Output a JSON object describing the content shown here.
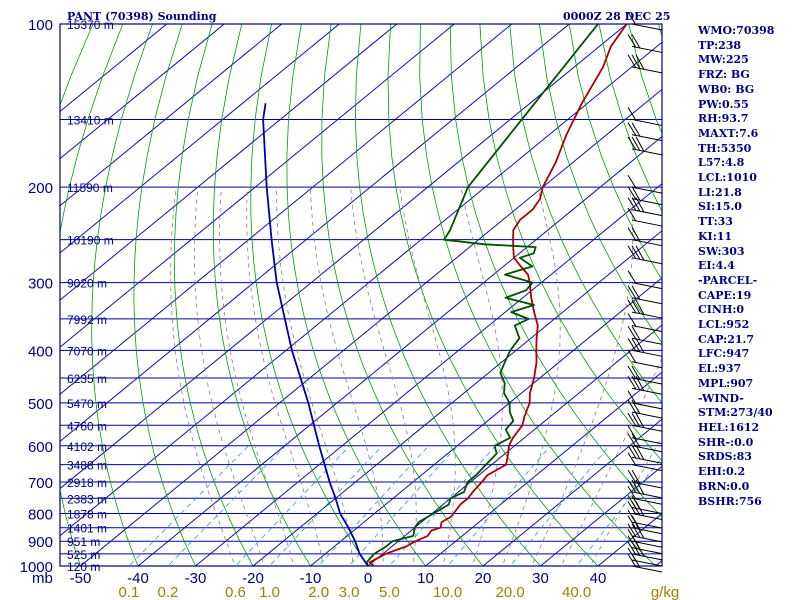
{
  "header": {
    "station_title": "PANT (70398) Sounding",
    "valid_time": "0000Z 28 DEC 25"
  },
  "chart_data": {
    "type": "skew-t",
    "y_unit": "mb",
    "x_unit": "°C",
    "pressure_ticks": [
      {
        "label": "100",
        "p": 100
      },
      {
        "label": "200",
        "p": 200
      },
      {
        "label": "300",
        "p": 300
      },
      {
        "label": "400",
        "p": 400
      },
      {
        "label": "500",
        "p": 500
      },
      {
        "label": "600",
        "p": 600
      },
      {
        "label": "700",
        "p": 700
      },
      {
        "label": "800",
        "p": 800
      },
      {
        "label": "900",
        "p": 900
      },
      {
        "label": "1000",
        "p": 1000
      }
    ],
    "height_labels": [
      {
        "label": "15370 m",
        "p": 100
      },
      {
        "label": "13410 m",
        "p": 150
      },
      {
        "label": "11590 m",
        "p": 200
      },
      {
        "label": "10190 m",
        "p": 250
      },
      {
        "label": "9020 m",
        "p": 300
      },
      {
        "label": "7992 m",
        "p": 350
      },
      {
        "label": "7070 m",
        "p": 400
      },
      {
        "label": "6235 m",
        "p": 450
      },
      {
        "label": "5470 m",
        "p": 500
      },
      {
        "label": "4760 m",
        "p": 550
      },
      {
        "label": "4102 m",
        "p": 600
      },
      {
        "label": "3488 m",
        "p": 650
      },
      {
        "label": "2918 m",
        "p": 700
      },
      {
        "label": "2383 m",
        "p": 750
      },
      {
        "label": "1878 m",
        "p": 800
      },
      {
        "label": "1401 m",
        "p": 850
      },
      {
        "label": "951 m",
        "p": 900
      },
      {
        "label": "525 m",
        "p": 950
      },
      {
        "label": "120 m",
        "p": 1000
      }
    ],
    "temp_ticks": [
      -50,
      -40,
      -30,
      -20,
      -10,
      0,
      10,
      20,
      30,
      40
    ],
    "mixing_ratio_ticks": [
      "0.1",
      "0.2",
      "0.6",
      "1.0",
      "2.0",
      "3.0",
      "5.0",
      "10.0",
      "20.0",
      "40.0"
    ],
    "mixing_ratio_unit": "g/kg",
    "series": [
      {
        "key": "temperature",
        "color": "#b00000",
        "points": [
          [
            1000,
            1.0
          ],
          [
            985,
            -0.5
          ],
          [
            950,
            0.5
          ],
          [
            920,
            2.5
          ],
          [
            900,
            3.0
          ],
          [
            880,
            4.0
          ],
          [
            860,
            3.5
          ],
          [
            850,
            4.5
          ],
          [
            830,
            3.5
          ],
          [
            810,
            4.0
          ],
          [
            790,
            3.5
          ],
          [
            770,
            3.0
          ],
          [
            750,
            3.0
          ],
          [
            730,
            2.5
          ],
          [
            700,
            2.0
          ],
          [
            680,
            1.5
          ],
          [
            650,
            2.5
          ],
          [
            620,
            0.5
          ],
          [
            600,
            -1.0
          ],
          [
            580,
            -2.0
          ],
          [
            550,
            -3.0
          ],
          [
            530,
            -4.5
          ],
          [
            500,
            -6.5
          ],
          [
            480,
            -8.5
          ],
          [
            450,
            -11.0
          ],
          [
            420,
            -14.0
          ],
          [
            400,
            -16.5
          ],
          [
            380,
            -19.0
          ],
          [
            360,
            -21.5
          ],
          [
            340,
            -25.0
          ],
          [
            320,
            -28.5
          ],
          [
            300,
            -32.0
          ],
          [
            290,
            -34.0
          ],
          [
            280,
            -37.0
          ],
          [
            270,
            -40.0
          ],
          [
            260,
            -42.0
          ],
          [
            250,
            -44.0
          ],
          [
            240,
            -46.0
          ],
          [
            230,
            -47.0
          ],
          [
            220,
            -47.0
          ],
          [
            210,
            -48.0
          ],
          [
            200,
            -50.0
          ],
          [
            180,
            -53.0
          ],
          [
            160,
            -57.0
          ],
          [
            140,
            -61.0
          ],
          [
            120,
            -65.0
          ],
          [
            110,
            -68.0
          ],
          [
            100,
            -70.0
          ]
        ]
      },
      {
        "key": "dewpoint",
        "color": "#005000",
        "points": [
          [
            1000,
            0.0
          ],
          [
            985,
            -1.0
          ],
          [
            950,
            -1.5
          ],
          [
            920,
            -1.0
          ],
          [
            900,
            -1.0
          ],
          [
            880,
            1.5
          ],
          [
            860,
            0.5
          ],
          [
            850,
            0.0
          ],
          [
            830,
            -0.5
          ],
          [
            810,
            0.0
          ],
          [
            790,
            0.5
          ],
          [
            770,
            1.0
          ],
          [
            750,
            0.0
          ],
          [
            730,
            1.0
          ],
          [
            700,
            -0.5
          ],
          [
            680,
            -0.5
          ],
          [
            650,
            -1.0
          ],
          [
            620,
            -1.5
          ],
          [
            600,
            -3.5
          ],
          [
            580,
            -2.5
          ],
          [
            560,
            -5.0
          ],
          [
            540,
            -5.5
          ],
          [
            520,
            -8.0
          ],
          [
            500,
            -10.0
          ],
          [
            480,
            -13.0
          ],
          [
            460,
            -15.0
          ],
          [
            440,
            -18.0
          ],
          [
            420,
            -19.5
          ],
          [
            400,
            -21.0
          ],
          [
            380,
            -22.0
          ],
          [
            360,
            -25.5
          ],
          [
            350,
            -24.5
          ],
          [
            340,
            -29.0
          ],
          [
            330,
            -26.5
          ],
          [
            320,
            -33.0
          ],
          [
            310,
            -31.0
          ],
          [
            300,
            -31.5
          ],
          [
            290,
            -38.0
          ],
          [
            280,
            -35.0
          ],
          [
            270,
            -39.0
          ],
          [
            265,
            -37.5
          ],
          [
            258,
            -38.5
          ],
          [
            255,
            -48.0
          ],
          [
            250,
            -56.0
          ],
          [
            240,
            -57.0
          ],
          [
            200,
            -63.0
          ],
          [
            150,
            -68.0
          ],
          [
            100,
            -75.0
          ]
        ]
      },
      {
        "key": "reference",
        "color": "#0000aa",
        "points": [
          [
            1000,
            0.0
          ],
          [
            950,
            -4.0
          ],
          [
            900,
            -7.5
          ],
          [
            850,
            -11.5
          ],
          [
            800,
            -16.0
          ],
          [
            750,
            -20.0
          ],
          [
            700,
            -24.5
          ],
          [
            600,
            -34.0
          ],
          [
            500,
            -45.0
          ],
          [
            400,
            -59.0
          ],
          [
            300,
            -76.0
          ],
          [
            250,
            -86.0
          ],
          [
            200,
            -98.0
          ],
          [
            150,
            -113.0
          ],
          [
            140,
            -116.0
          ]
        ]
      }
    ]
  },
  "wind_profile": {
    "note": "Wind barbs plotted at right edge"
  },
  "indices": [
    "WMO:70398",
    "TP:238",
    "MW:225",
    "FRZ: BG",
    "WB0: BG",
    "PW:0.55",
    "RH:93.7",
    "MAXT:7.6",
    "TH:5350",
    "L57:4.8",
    "LCL:1010",
    "LI:21.8",
    "SI:15.0",
    "TT:33",
    "KI:11",
    "SW:303",
    "EI:4.4",
    "-PARCEL-",
    "CAPE:19",
    "CINH:0",
    "LCL:952",
    "CAP:21.7",
    "LFC:947",
    "EL:937",
    "MPL:907",
    "-WIND-",
    "STM:273/40",
    "HEL:1612",
    "SHR-:0.0",
    "SRDS:83",
    "EHI:0.2",
    "BRN:0.0",
    "BSHR:756"
  ]
}
